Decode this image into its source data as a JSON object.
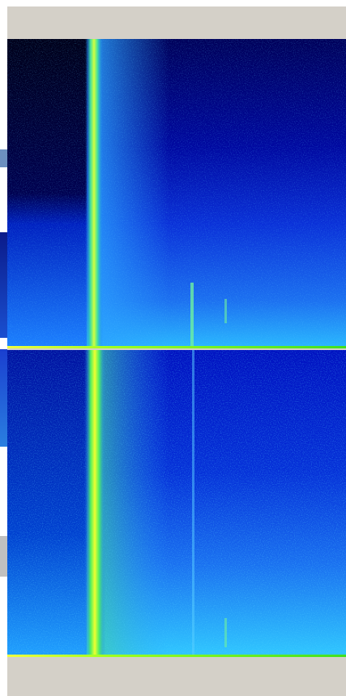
{
  "app": {
    "name": "",
    "colors": {
      "frame": "#d4d0c8",
      "low_energy": "#00007a",
      "mid_energy": "#1aa0ff",
      "high_energy": "#f0ff30"
    }
  },
  "spectrogram": {
    "channels": [
      "top",
      "bottom"
    ],
    "colormap": "blue-cyan-green-yellow"
  }
}
